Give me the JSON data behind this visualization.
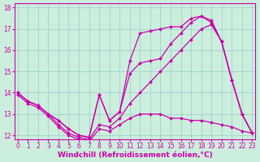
{
  "background_color": "#cceedd",
  "plot_bg_color": "#cceedd",
  "line_color": "#cc00aa",
  "marker": "D",
  "markersize": 2.0,
  "linewidth": 0.9,
  "xlabel": "Windchill (Refroidissement éolien,°C)",
  "xlabel_fontsize": 6.5,
  "tick_fontsize": 5.5,
  "xlim": [
    -0.3,
    23.3
  ],
  "ylim": [
    11.8,
    18.2
  ],
  "yticks": [
    12,
    13,
    14,
    15,
    16,
    17,
    18
  ],
  "xticks": [
    0,
    1,
    2,
    3,
    4,
    5,
    6,
    7,
    8,
    9,
    10,
    11,
    12,
    13,
    14,
    15,
    16,
    17,
    18,
    19,
    20,
    21,
    22,
    23
  ],
  "grid_color": "#99cccc",
  "lines": [
    {
      "x": [
        0,
        1,
        2,
        3,
        4,
        5,
        6,
        7,
        8,
        9,
        10,
        11,
        12,
        13,
        14,
        15,
        16,
        17,
        18,
        19,
        20,
        21,
        22,
        23
      ],
      "y": [
        14.0,
        13.6,
        13.4,
        13.0,
        12.7,
        12.3,
        12.0,
        11.9,
        13.9,
        12.7,
        13.1,
        15.5,
        16.8,
        16.9,
        17.0,
        17.1,
        17.1,
        17.5,
        17.6,
        17.3,
        16.4,
        14.6,
        13.0,
        12.1
      ]
    },
    {
      "x": [
        0,
        1,
        2,
        3,
        4,
        5,
        6,
        7,
        8,
        9,
        10,
        11,
        12,
        13,
        14,
        15,
        16,
        17,
        18,
        19,
        20,
        21,
        22,
        23
      ],
      "y": [
        14.0,
        13.6,
        13.4,
        13.0,
        12.7,
        12.3,
        12.0,
        11.9,
        13.9,
        12.7,
        13.1,
        14.9,
        15.4,
        15.5,
        15.6,
        16.3,
        16.8,
        17.3,
        17.6,
        17.4,
        16.4,
        14.6,
        13.0,
        12.1
      ]
    },
    {
      "x": [
        0,
        1,
        2,
        3,
        4,
        5,
        6,
        7,
        8,
        9,
        10,
        11,
        12,
        13,
        14,
        15,
        16,
        17,
        18,
        19,
        20,
        21,
        22,
        23
      ],
      "y": [
        14.0,
        13.6,
        13.4,
        13.0,
        12.5,
        12.1,
        11.9,
        11.8,
        12.5,
        12.4,
        12.8,
        13.5,
        14.0,
        14.5,
        15.0,
        15.5,
        16.0,
        16.5,
        17.0,
        17.2,
        16.4,
        14.6,
        13.0,
        12.1
      ]
    },
    {
      "x": [
        0,
        1,
        2,
        3,
        4,
        5,
        6,
        7,
        8,
        9,
        10,
        11,
        12,
        13,
        14,
        15,
        16,
        17,
        18,
        19,
        20,
        21,
        22,
        23
      ],
      "y": [
        13.9,
        13.5,
        13.3,
        12.9,
        12.4,
        12.0,
        11.8,
        11.7,
        12.3,
        12.2,
        12.5,
        12.8,
        13.0,
        13.0,
        13.0,
        12.8,
        12.8,
        12.7,
        12.7,
        12.6,
        12.5,
        12.4,
        12.2,
        12.1
      ]
    }
  ]
}
